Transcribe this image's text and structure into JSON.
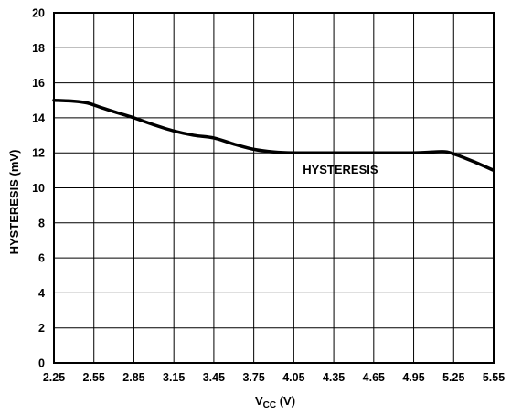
{
  "chart_data": {
    "type": "line",
    "title": "",
    "xlabel_main": "V",
    "xlabel_sub": "CC",
    "xlabel_unit": " (V)",
    "ylabel": "HYSTERESIS (mV)",
    "xlim": [
      2.25,
      5.55
    ],
    "ylim": [
      0,
      20
    ],
    "xticks": [
      "2.25",
      "2.55",
      "2.85",
      "3.15",
      "3.45",
      "3.75",
      "4.05",
      "4.35",
      "4.65",
      "4.95",
      "5.25",
      "5.55"
    ],
    "yticks": [
      "0",
      "2",
      "4",
      "6",
      "8",
      "10",
      "12",
      "14",
      "16",
      "18",
      "20"
    ],
    "grid": true,
    "legend": "none",
    "series": [
      {
        "label": "HYSTERESIS",
        "color": "#000000",
        "x": [
          2.25,
          2.4,
          2.5,
          2.6,
          2.7,
          2.85,
          3.0,
          3.15,
          3.3,
          3.45,
          3.6,
          3.75,
          3.9,
          4.05,
          4.35,
          4.65,
          4.95,
          5.1,
          5.2,
          5.3,
          5.4,
          5.55
        ],
        "y": [
          15.0,
          14.95,
          14.85,
          14.6,
          14.35,
          14.0,
          13.6,
          13.25,
          13.0,
          12.85,
          12.5,
          12.2,
          12.05,
          12.0,
          12.0,
          12.0,
          12.0,
          12.05,
          12.05,
          11.8,
          11.5,
          11.0
        ]
      }
    ],
    "annotations": [
      {
        "text": "HYSTERESIS",
        "x": 4.4,
        "y": 10.8
      }
    ]
  }
}
